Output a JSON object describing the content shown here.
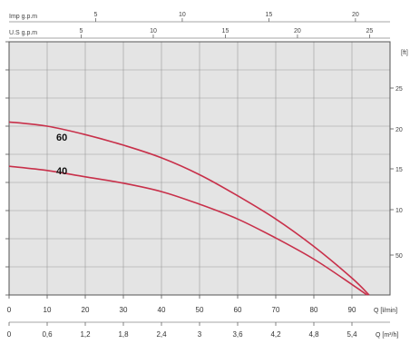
{
  "chart_data": {
    "type": "line",
    "grid": true,
    "plot_background": "#e4e4e4",
    "line_color": "#c8304a",
    "top_axis_imp": {
      "label": "Imp g.p.m",
      "ticks": [
        "5",
        "10",
        "15",
        "20"
      ],
      "values": [
        5,
        10,
        15,
        20
      ]
    },
    "top_axis_us": {
      "label": "U.S g.p.m",
      "ticks": [
        "5",
        "10",
        "15",
        "20",
        "25"
      ],
      "values": [
        5,
        10,
        15,
        20,
        25
      ]
    },
    "x_lpm": {
      "label": "Q [l/min]",
      "ticks": [
        "0",
        "10",
        "20",
        "30",
        "40",
        "50",
        "60",
        "70",
        "80",
        "90"
      ],
      "values": [
        0,
        10,
        20,
        30,
        40,
        50,
        60,
        70,
        80,
        90
      ],
      "range": [
        0,
        100
      ]
    },
    "x_m3h": {
      "label": "Q [m³/h]",
      "ticks": [
        "0",
        "0,6",
        "1,2",
        "1,8",
        "2,4",
        "3",
        "3,6",
        "4,2",
        "4,8",
        "5,4"
      ],
      "values": [
        0,
        0.6,
        1.2,
        1.8,
        2.4,
        3,
        3.6,
        4.2,
        4.8,
        5.4
      ]
    },
    "right_axis": {
      "label": "[ft]",
      "ticks": [
        "25",
        "20",
        "15",
        "10",
        "50"
      ],
      "y_positions": [
        97,
        142,
        186,
        231,
        281
      ]
    },
    "series": [
      {
        "name": "60",
        "x": [
          0,
          10,
          20,
          30,
          40,
          50,
          60,
          70,
          80,
          90,
          94.5
        ],
        "y": [
          8.2,
          8.0,
          7.6,
          7.1,
          6.5,
          5.7,
          4.7,
          3.6,
          2.3,
          0.8,
          0
        ]
      },
      {
        "name": "40",
        "x": [
          0,
          10,
          20,
          30,
          40,
          50,
          60,
          70,
          80,
          90,
          94.0
        ],
        "y": [
          6.1,
          5.9,
          5.6,
          5.3,
          4.9,
          4.3,
          3.6,
          2.7,
          1.7,
          0.5,
          0
        ]
      }
    ],
    "y_range": [
      0,
      12
    ]
  }
}
